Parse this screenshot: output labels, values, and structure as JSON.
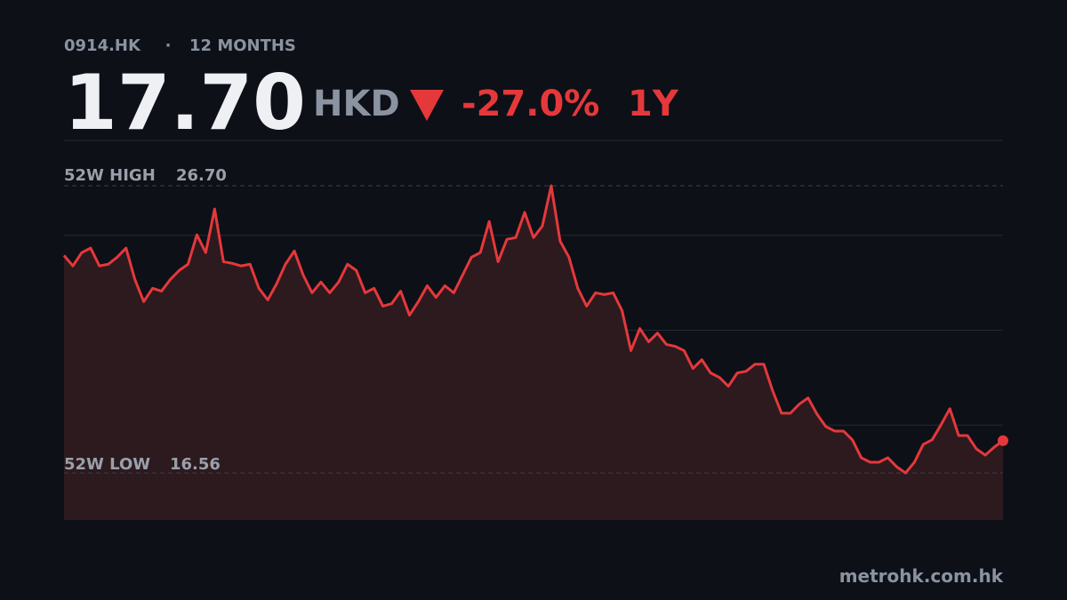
{
  "chart_data": {
    "type": "line",
    "ticker": "0914.HK",
    "separator": "·",
    "range_label": "12 MONTHS",
    "price": "17.70",
    "currency": "HKD",
    "change": "-27.0%",
    "period": "1Y",
    "high_label": "52W HIGH",
    "high": {
      "value": 26.7,
      "label": "26.70"
    },
    "low_label": "52W LOW",
    "low": {
      "value": 16.56,
      "label": "16.56"
    },
    "source": "metrohk.com.hk",
    "color": "#e5383b",
    "ylim": [
      14.9,
      28.3
    ],
    "values": [
      24.24,
      23.87,
      24.34,
      24.5,
      23.87,
      23.93,
      24.18,
      24.5,
      23.39,
      22.61,
      23.08,
      22.98,
      23.39,
      23.71,
      23.93,
      24.97,
      24.34,
      25.88,
      24.02,
      23.96,
      23.87,
      23.93,
      23.08,
      22.67,
      23.24,
      23.93,
      24.4,
      23.55,
      22.92,
      23.3,
      22.92,
      23.3,
      23.93,
      23.71,
      22.92,
      23.08,
      22.45,
      22.54,
      22.98,
      22.13,
      22.61,
      23.17,
      22.76,
      23.17,
      22.92,
      23.55,
      24.18,
      24.34,
      25.44,
      24.02,
      24.81,
      24.87,
      25.76,
      24.87,
      25.28,
      26.7,
      24.75,
      24.18,
      23.08,
      22.45,
      22.92,
      22.86,
      22.92,
      22.29,
      20.88,
      21.66,
      21.19,
      21.5,
      21.1,
      21.03,
      20.88,
      20.25,
      20.56,
      20.09,
      19.93,
      19.62,
      20.09,
      20.15,
      20.4,
      20.4,
      19.46,
      18.67,
      18.67,
      18.99,
      19.21,
      18.64,
      18.2,
      18.04,
      18.04,
      17.73,
      17.1,
      16.94,
      16.94,
      17.1,
      16.78,
      16.56,
      16.94,
      17.57,
      17.73,
      18.26,
      18.83,
      17.88,
      17.88,
      17.41,
      17.19,
      17.47,
      17.7
    ]
  }
}
